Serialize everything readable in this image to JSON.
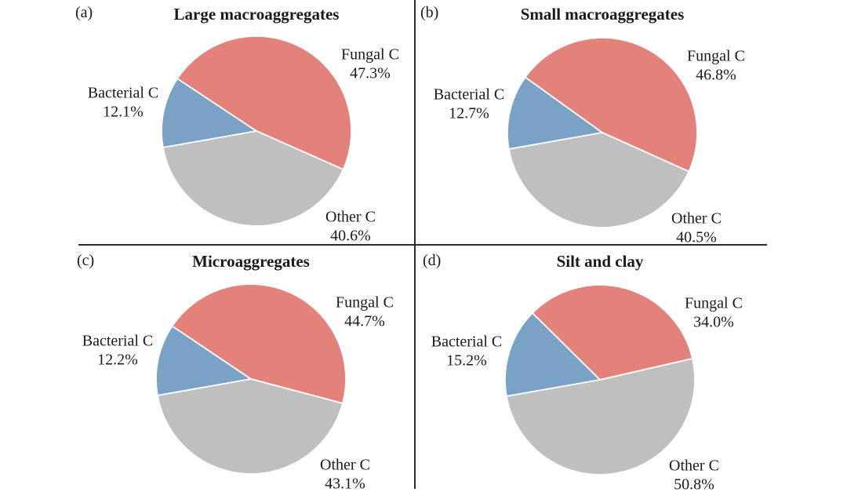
{
  "figure": {
    "background": "#ffffff",
    "divider_color": "#2b2b2b"
  },
  "colors": {
    "fungal": "#e2827a",
    "bacterial": "#7aa1c6",
    "other": "#bfbfbf",
    "slice_border": "#ffffff"
  },
  "chart_data": [
    {
      "type": "pie",
      "panel_label": "(a)",
      "title": "Large macroaggregates",
      "slices": [
        {
          "name": "Fungal C",
          "percent": 47.3,
          "color_key": "fungal"
        },
        {
          "name": "Bacterial C",
          "percent": 12.1,
          "color_key": "bacterial"
        },
        {
          "name": "Other C",
          "percent": 40.6,
          "color_key": "other"
        }
      ],
      "start_angle_deg": 260,
      "clockwise_order": [
        "Bacterial C",
        "Fungal C",
        "Other C"
      ],
      "legend_position": "labels-outside"
    },
    {
      "type": "pie",
      "panel_label": "(b)",
      "title": "Small macroaggregates",
      "slices": [
        {
          "name": "Fungal C",
          "percent": 46.8,
          "color_key": "fungal"
        },
        {
          "name": "Bacterial C",
          "percent": 12.7,
          "color_key": "bacterial"
        },
        {
          "name": "Other C",
          "percent": 40.5,
          "color_key": "other"
        }
      ],
      "start_angle_deg": 260,
      "clockwise_order": [
        "Bacterial C",
        "Fungal C",
        "Other C"
      ],
      "legend_position": "labels-outside"
    },
    {
      "type": "pie",
      "panel_label": "(c)",
      "title": "Microaggregates",
      "slices": [
        {
          "name": "Fungal C",
          "percent": 44.7,
          "color_key": "fungal"
        },
        {
          "name": "Bacterial C",
          "percent": 12.2,
          "color_key": "bacterial"
        },
        {
          "name": "Other C",
          "percent": 43.1,
          "color_key": "other"
        }
      ],
      "start_angle_deg": 260,
      "clockwise_order": [
        "Bacterial C",
        "Fungal C",
        "Other C"
      ],
      "legend_position": "labels-outside"
    },
    {
      "type": "pie",
      "panel_label": "(d)",
      "title": "Silt and clay",
      "slices": [
        {
          "name": "Fungal C",
          "percent": 34.0,
          "color_key": "fungal"
        },
        {
          "name": "Bacterial C",
          "percent": 15.2,
          "color_key": "bacterial"
        },
        {
          "name": "Other C",
          "percent": 50.8,
          "color_key": "other"
        }
      ],
      "start_angle_deg": 260,
      "clockwise_order": [
        "Bacterial C",
        "Fungal C",
        "Other C"
      ],
      "legend_position": "labels-outside"
    }
  ]
}
